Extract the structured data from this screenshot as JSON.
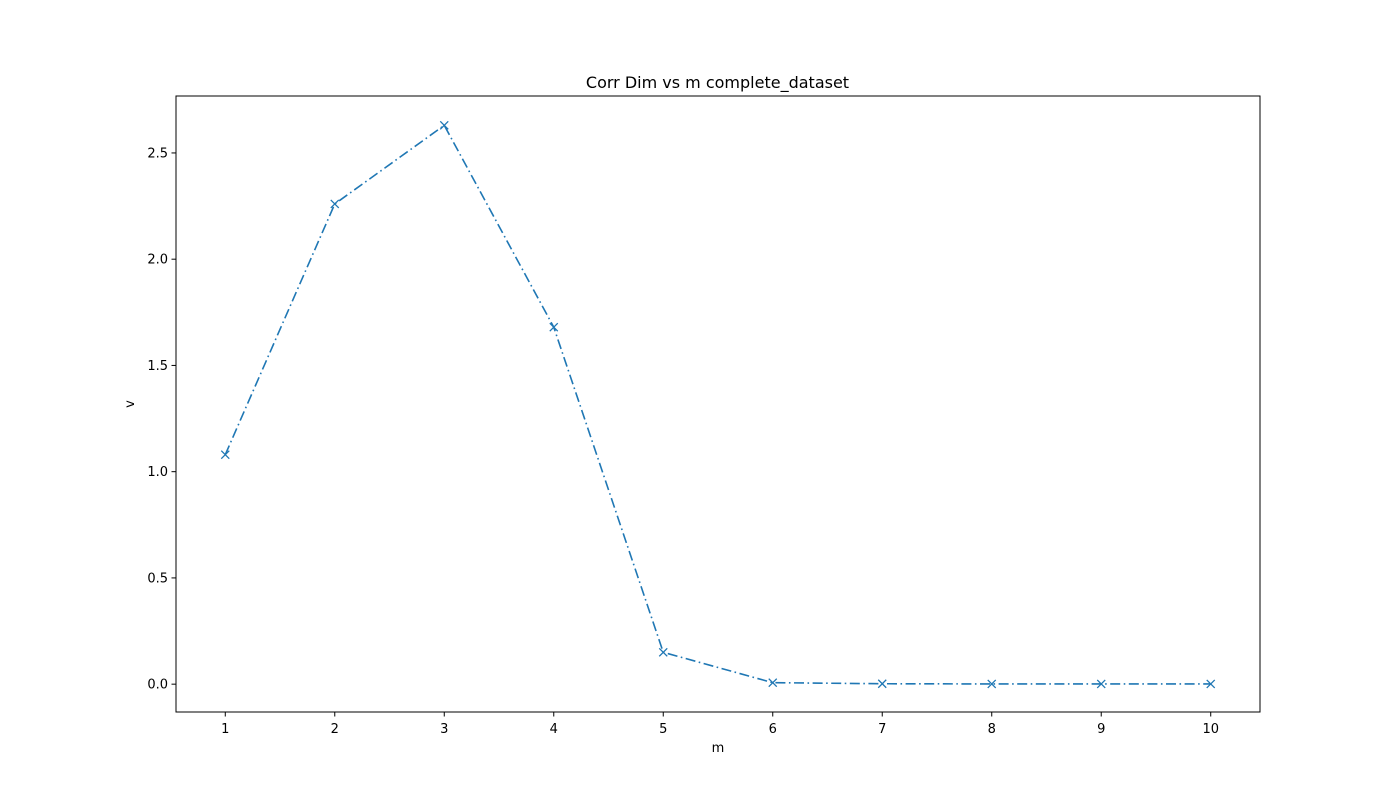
{
  "chart_data": {
    "type": "line",
    "title": "Corr Dim vs m complete_dataset",
    "xlabel": "m",
    "ylabel": "v",
    "x": [
      1,
      2,
      3,
      4,
      5,
      6,
      7,
      8,
      9,
      10
    ],
    "series": [
      {
        "values": [
          1.08,
          2.26,
          2.63,
          1.68,
          0.15,
          0.007,
          0.002,
          0.001,
          0.001,
          0.001
        ],
        "color": "#1f77b4",
        "line_style": "dash-dot",
        "marker": "x"
      }
    ],
    "xlim": [
      0.55,
      10.45
    ],
    "ylim": [
      -0.131,
      2.768
    ],
    "xticks": [
      "1",
      "2",
      "3",
      "4",
      "5",
      "6",
      "7",
      "8",
      "9",
      "10"
    ],
    "yticks": [
      "0.0",
      "0.5",
      "1.0",
      "1.5",
      "2.0",
      "2.5"
    ],
    "grid": false,
    "legend": "none"
  }
}
